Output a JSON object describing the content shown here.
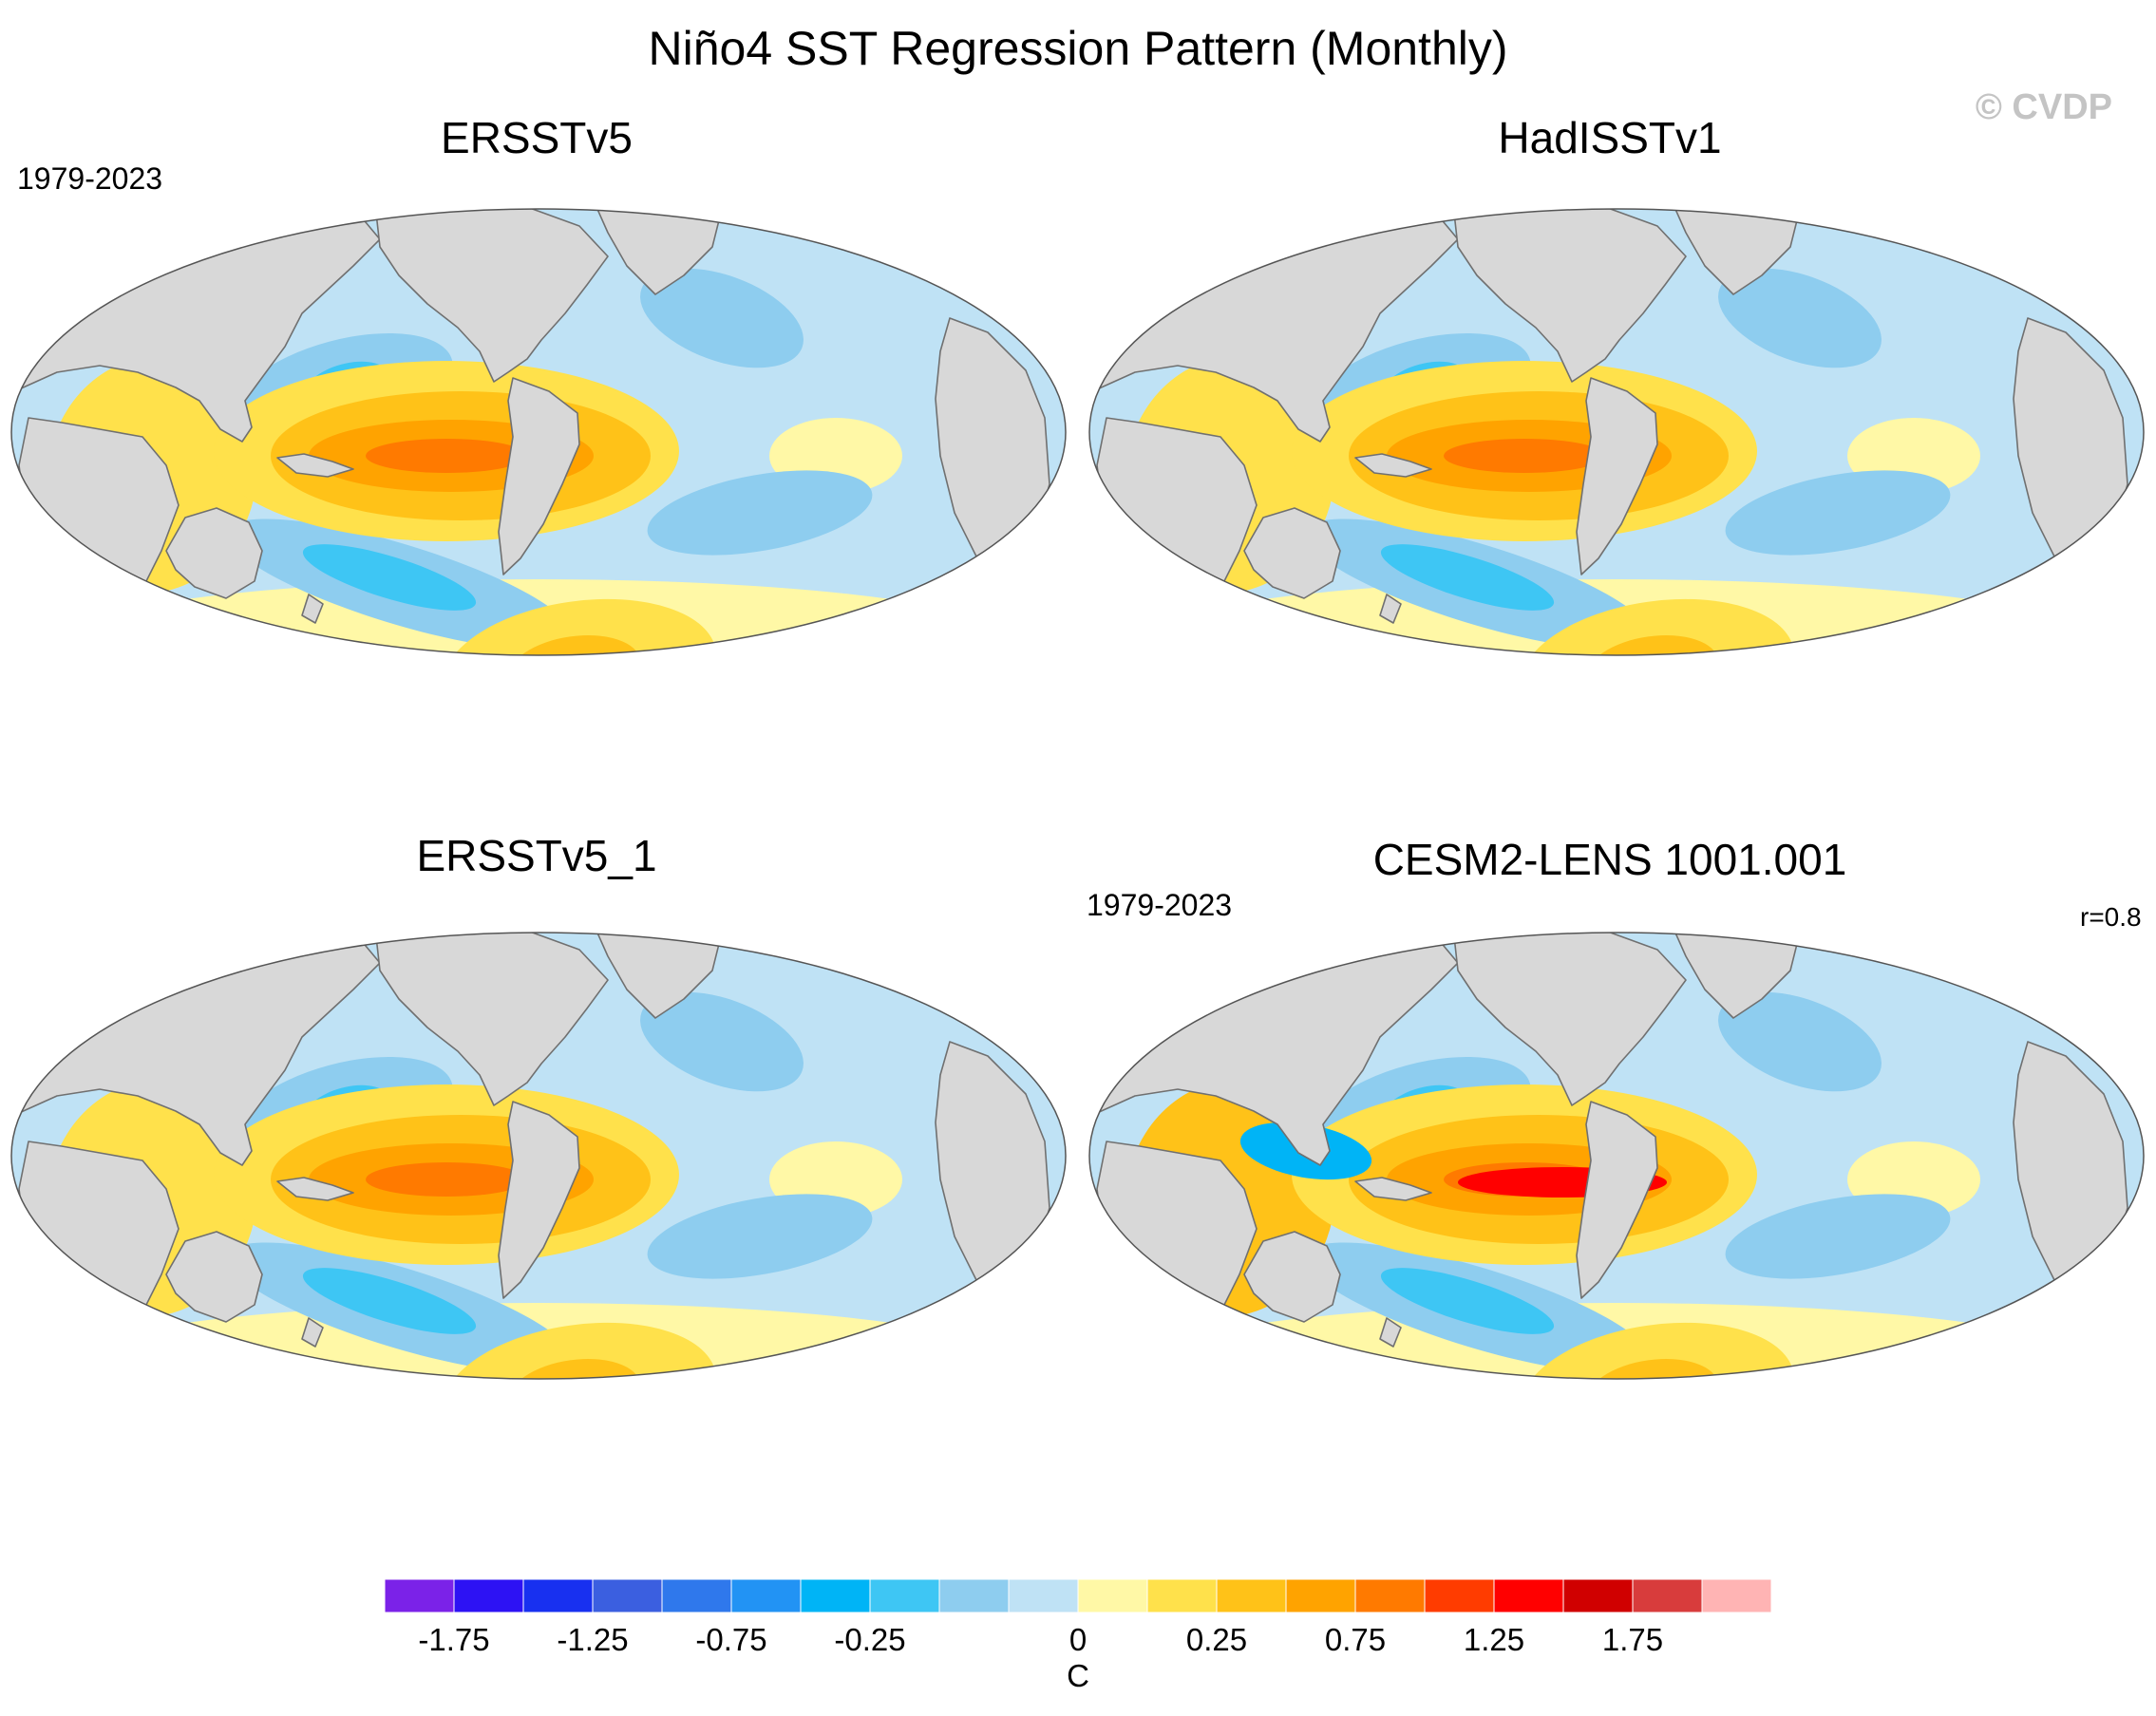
{
  "figure": {
    "title": "Niño4 SST Regression Pattern (Monthly)",
    "credit": "© CVDP"
  },
  "panels": [
    {
      "title": "ERSSTv5",
      "period": "1979-2023",
      "stat": ""
    },
    {
      "title": "HadISSTv1",
      "period": "",
      "stat": ""
    },
    {
      "title": "ERSSTv5_1",
      "period": "",
      "stat": ""
    },
    {
      "title": "CESM2-LENS 1001.001",
      "period": "1979-2023",
      "stat": "r=0.8"
    }
  ],
  "colorbar": {
    "unit": "C",
    "tick_labels": [
      "-1.75",
      "-1.25",
      "-0.75",
      "-0.25",
      "0",
      "0.25",
      "0.75",
      "1.25",
      "1.75"
    ],
    "tick_values": [
      -1.75,
      -1.25,
      -0.75,
      -0.25,
      0,
      0.25,
      0.75,
      1.25,
      1.75
    ],
    "bins": [
      {
        "lo": null,
        "hi": -1.75,
        "color": "#7b22e8"
      },
      {
        "lo": -1.75,
        "hi": -1.5,
        "color": "#2d12f4"
      },
      {
        "lo": -1.5,
        "hi": -1.25,
        "color": "#1830f0"
      },
      {
        "lo": -1.25,
        "hi": -1.0,
        "color": "#3b5fe0"
      },
      {
        "lo": -1.0,
        "hi": -0.75,
        "color": "#2f78ec"
      },
      {
        "lo": -0.75,
        "hi": -0.5,
        "color": "#2293f4"
      },
      {
        "lo": -0.5,
        "hi": -0.25,
        "color": "#00b4f6"
      },
      {
        "lo": -0.25,
        "hi": -0.15,
        "color": "#3ec6f4"
      },
      {
        "lo": -0.15,
        "hi": -0.05,
        "color": "#8ecdef"
      },
      {
        "lo": -0.05,
        "hi": 0,
        "color": "#bfe2f5"
      },
      {
        "lo": 0,
        "hi": 0.05,
        "color": "#fff8a6"
      },
      {
        "lo": 0.05,
        "hi": 0.25,
        "color": "#ffe14b"
      },
      {
        "lo": 0.25,
        "hi": 0.5,
        "color": "#ffc218"
      },
      {
        "lo": 0.5,
        "hi": 0.75,
        "color": "#ffa300"
      },
      {
        "lo": 0.75,
        "hi": 1.0,
        "color": "#ff7a00"
      },
      {
        "lo": 1.0,
        "hi": 1.25,
        "color": "#ff3c00"
      },
      {
        "lo": 1.25,
        "hi": 1.5,
        "color": "#ff0000"
      },
      {
        "lo": 1.5,
        "hi": 1.75,
        "color": "#d00000"
      },
      {
        "lo": 1.75,
        "hi": 2.0,
        "color": "#d83c3c"
      },
      {
        "lo": 2.0,
        "hi": null,
        "color": "#ffb4b4"
      }
    ]
  },
  "map_colors": {
    "land": "#d8d8d8",
    "coast": "#707070",
    "border": "#555555"
  }
}
